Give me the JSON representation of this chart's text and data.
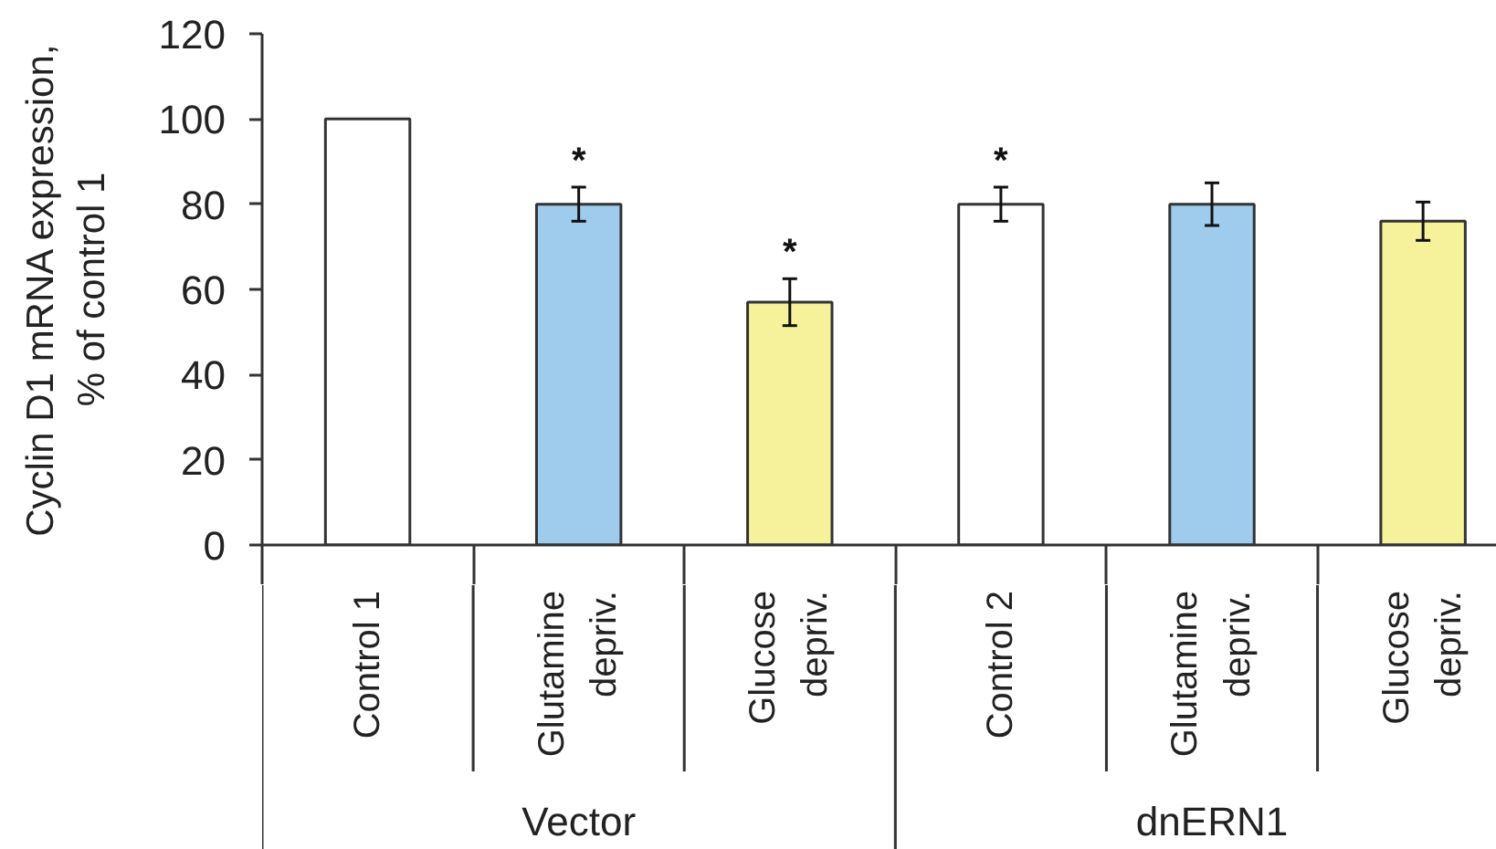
{
  "chart_data": {
    "type": "bar",
    "ylabel": "Cyclin D1 mRNA expression,\n% of control 1",
    "categories": [
      "Control 1",
      "Glutamine depriv.",
      "Glucose depriv.",
      "Control 2",
      "Glutamine depriv.",
      "Glucose depriv."
    ],
    "values": [
      100,
      80,
      57,
      80,
      80,
      76
    ],
    "colors": [
      "#ffffff",
      "#9fcbec",
      "#f6f29c",
      "#ffffff",
      "#9fcbec",
      "#f6f29c"
    ],
    "errors": [
      null,
      4,
      5.5,
      4,
      5,
      4.5
    ],
    "value_labels": [
      null,
      "*",
      "*",
      "*",
      null,
      null
    ],
    "annotations": [
      "Vector",
      "dnERN1"
    ],
    "ylim": [
      0,
      120
    ],
    "yticks": [
      0,
      20,
      40,
      60,
      80,
      100,
      120
    ]
  }
}
